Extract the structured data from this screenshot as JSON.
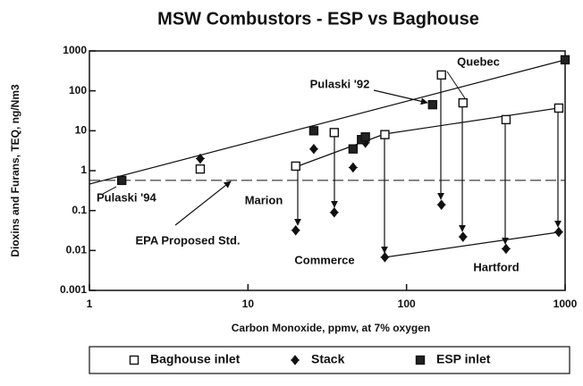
{
  "chart_data": {
    "type": "scatter",
    "title": "MSW Combustors - ESP vs Baghouse",
    "xlabel": "Carbon Monoxide, ppmv, at 7% oxygen",
    "ylabel": "Dioxins and Furans, TEQ, ng/Nm3",
    "xscale": "log",
    "yscale": "log",
    "xlim": [
      1,
      1000
    ],
    "ylim": [
      0.001,
      1000
    ],
    "xticks": [
      1,
      10,
      100,
      1000
    ],
    "yticks": [
      0.001,
      0.01,
      0.1,
      1,
      10,
      100,
      1000
    ],
    "legend": "bottom",
    "reference_lines": [
      0.57
    ],
    "series": [
      {
        "name": "Baghouse inlet",
        "marker": "open-square",
        "color": "#111111",
        "x": [
          5,
          20,
          35,
          73,
          166,
          227,
          424,
          912
        ],
        "values": [
          1.1,
          1.3,
          9,
          8,
          250,
          50,
          19,
          37
        ]
      },
      {
        "name": "Stack",
        "marker": "diamond",
        "color": "#111111",
        "x": [
          5,
          20,
          26,
          35,
          46,
          55,
          73,
          166,
          227,
          424,
          912
        ],
        "values": [
          2,
          0.032,
          3.5,
          0.09,
          1.2,
          5,
          0.0068,
          0.14,
          0.022,
          0.011,
          0.029
        ]
      },
      {
        "name": "ESP inlet",
        "marker": "filled-square",
        "color": "#111111",
        "x": [
          1.6,
          26,
          46,
          52,
          55,
          146,
          1000
        ],
        "values": [
          0.57,
          10,
          3.5,
          6,
          7,
          45,
          600
        ]
      }
    ],
    "annotations": [
      "Quebec",
      "Pulaski '92",
      "Pulaski '94",
      "Marion",
      "EPA Proposed Std.",
      "Commerce",
      "Hartford"
    ]
  }
}
